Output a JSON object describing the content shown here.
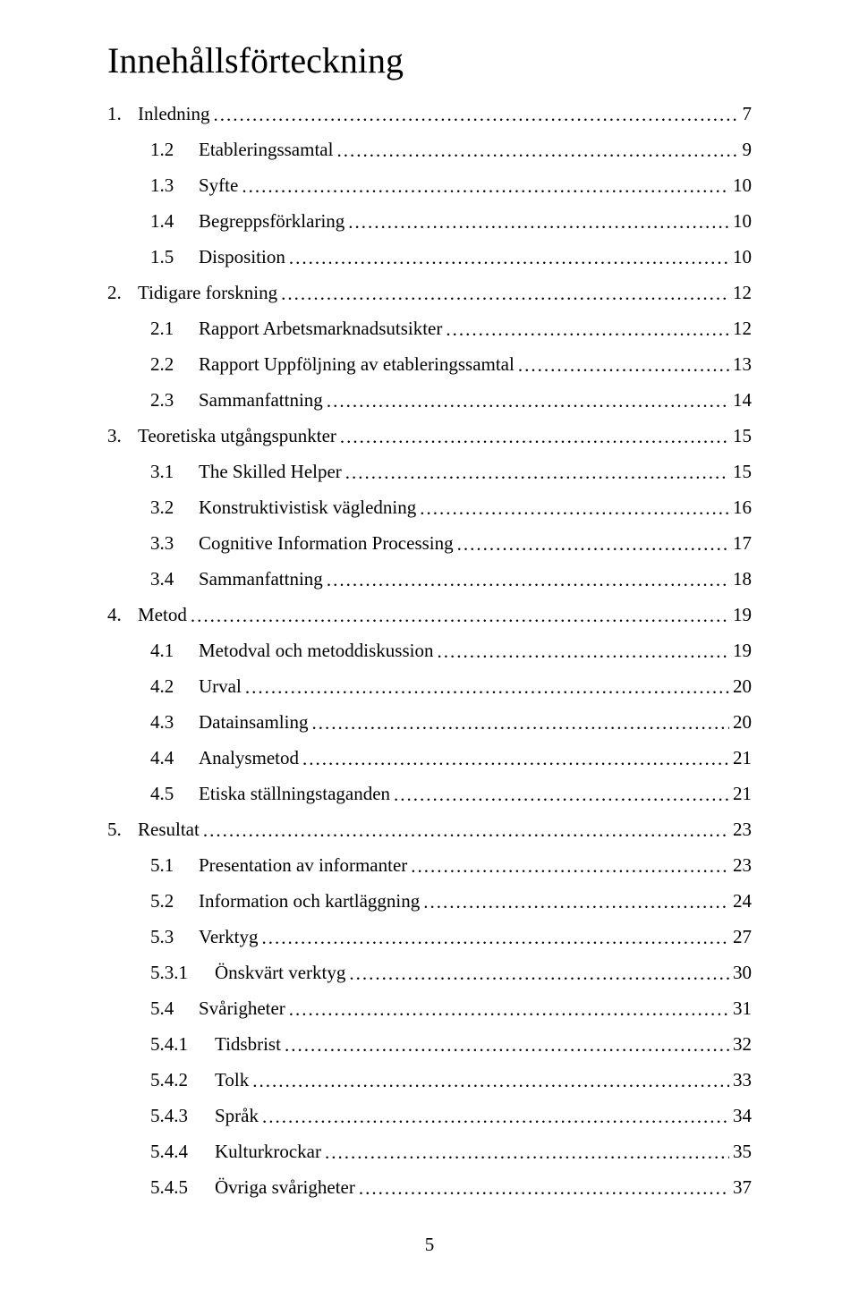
{
  "title": "Innehållsförteckning",
  "page_number": "5",
  "text_color": "#000000",
  "background_color": "#ffffff",
  "title_fontsize": 40,
  "entry_fontsize": 21,
  "entries": [
    {
      "num": "1.",
      "text": "Inledning",
      "page": "7",
      "level": 1
    },
    {
      "num": "1.2",
      "text": "Etableringssamtal",
      "page": "9",
      "level": 2
    },
    {
      "num": "1.3",
      "text": "Syfte",
      "page": "10",
      "level": 2
    },
    {
      "num": "1.4",
      "text": "Begreppsförklaring",
      "page": "10",
      "level": 2
    },
    {
      "num": "1.5",
      "text": "Disposition",
      "page": "10",
      "level": 2
    },
    {
      "num": "2.",
      "text": "Tidigare forskning",
      "page": "12",
      "level": 1
    },
    {
      "num": "2.1",
      "text": "Rapport Arbetsmarknadsutsikter",
      "page": "12",
      "level": 2
    },
    {
      "num": "2.2",
      "text": "Rapport Uppföljning av etableringssamtal",
      "page": "13",
      "level": 2
    },
    {
      "num": "2.3",
      "text": "Sammanfattning",
      "page": "14",
      "level": 2
    },
    {
      "num": "3.",
      "text": "Teoretiska utgångspunkter",
      "page": "15",
      "level": 1
    },
    {
      "num": "3.1",
      "text": "The Skilled Helper",
      "page": "15",
      "level": 2
    },
    {
      "num": "3.2",
      "text": "Konstruktivistisk vägledning",
      "page": "16",
      "level": 2
    },
    {
      "num": "3.3",
      "text": "Cognitive Information Processing",
      "page": "17",
      "level": 2
    },
    {
      "num": "3.4",
      "text": "Sammanfattning",
      "page": "18",
      "level": 2
    },
    {
      "num": "4.",
      "text": "Metod",
      "page": "19",
      "level": 1
    },
    {
      "num": "4.1",
      "text": "Metodval och metoddiskussion",
      "page": "19",
      "level": 2
    },
    {
      "num": "4.2",
      "text": "Urval",
      "page": "20",
      "level": 2
    },
    {
      "num": "4.3",
      "text": "Datainsamling",
      "page": "20",
      "level": 2
    },
    {
      "num": "4.4",
      "text": "Analysmetod",
      "page": "21",
      "level": 2
    },
    {
      "num": "4.5",
      "text": "Etiska ställningstaganden",
      "page": "21",
      "level": 2
    },
    {
      "num": "5.",
      "text": "Resultat",
      "page": "23",
      "level": 1
    },
    {
      "num": "5.1",
      "text": "Presentation av informanter",
      "page": "23",
      "level": 2
    },
    {
      "num": "5.2",
      "text": "Information och kartläggning",
      "page": "24",
      "level": 2
    },
    {
      "num": "5.3",
      "text": "Verktyg",
      "page": "27",
      "level": 2
    },
    {
      "num": "5.3.1",
      "text": "Önskvärt verktyg",
      "page": "30",
      "level": 3
    },
    {
      "num": "5.4",
      "text": "Svårigheter",
      "page": "31",
      "level": 2
    },
    {
      "num": "5.4.1",
      "text": "Tidsbrist",
      "page": "32",
      "level": 3
    },
    {
      "num": "5.4.2",
      "text": "Tolk",
      "page": "33",
      "level": 3
    },
    {
      "num": "5.4.3",
      "text": "Språk",
      "page": "34",
      "level": 3
    },
    {
      "num": "5.4.4",
      "text": "Kulturkrockar",
      "page": "35",
      "level": 3
    },
    {
      "num": "5.4.5",
      "text": "Övriga svårigheter",
      "page": "37",
      "level": 3
    }
  ]
}
